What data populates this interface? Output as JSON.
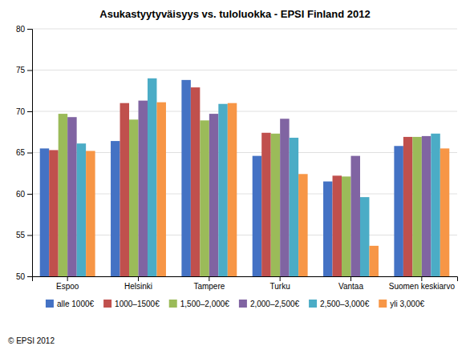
{
  "chart_data": {
    "type": "bar",
    "title": "Asukastyytyväisyys vs. tuloluokka - EPSI Finland 2012",
    "categories": [
      "Espoo",
      "Helsinki",
      "Tampere",
      "Turku",
      "Vantaa",
      "Suomen keskiarvo"
    ],
    "series": [
      {
        "name": "alle 1000€",
        "color": "#4472C4",
        "values": [
          65.5,
          66.4,
          73.8,
          64.6,
          61.5,
          65.8
        ]
      },
      {
        "name": "1000–1500€",
        "color": "#C0504D",
        "values": [
          65.3,
          71.0,
          72.9,
          67.4,
          62.2,
          66.9
        ]
      },
      {
        "name": "1,500–2,000€",
        "color": "#9BBB59",
        "values": [
          69.7,
          69.0,
          68.9,
          67.3,
          62.1,
          66.9
        ]
      },
      {
        "name": "2,000–2,500€",
        "color": "#8064A2",
        "values": [
          69.3,
          71.3,
          69.7,
          69.1,
          64.6,
          67.0
        ]
      },
      {
        "name": "2,500–3,000€",
        "color": "#4BACC6",
        "values": [
          66.1,
          74.0,
          70.9,
          66.8,
          59.6,
          67.3
        ]
      },
      {
        "name": "yli 3,000€",
        "color": "#F79646",
        "values": [
          65.2,
          71.1,
          71.0,
          62.4,
          53.7,
          65.5
        ]
      }
    ],
    "ylim": [
      50,
      80
    ],
    "yticks": [
      50,
      55,
      60,
      65,
      70,
      75,
      80
    ],
    "grid": true,
    "legend": "bottom",
    "annotations": [
      "© EPSI 2012"
    ]
  }
}
